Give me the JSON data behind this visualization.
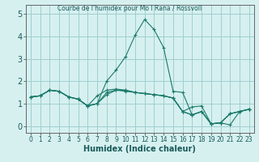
{
  "title": "",
  "xlabel": "Humidex (Indice chaleur)",
  "ylabel": "",
  "bg_color": "#d6f0f0",
  "grid_color": "#a0cece",
  "line_color": "#1a7a6a",
  "xlim": [
    -0.5,
    23.5
  ],
  "ylim": [
    -0.3,
    5.4
  ],
  "xticks": [
    0,
    1,
    2,
    3,
    4,
    5,
    6,
    7,
    8,
    9,
    10,
    11,
    12,
    13,
    14,
    15,
    16,
    17,
    18,
    19,
    20,
    21,
    22,
    23
  ],
  "yticks": [
    0,
    1,
    2,
    3,
    4,
    5
  ],
  "series": [
    [
      1.3,
      1.35,
      1.6,
      1.55,
      1.3,
      1.2,
      0.9,
      1.0,
      2.0,
      2.5,
      3.1,
      4.05,
      4.75,
      4.3,
      3.5,
      1.55,
      1.5,
      0.5,
      0.65,
      0.1,
      0.15,
      0.55,
      0.65,
      0.75
    ],
    [
      1.3,
      1.35,
      1.6,
      1.55,
      1.3,
      1.2,
      0.9,
      1.0,
      1.4,
      1.6,
      1.6,
      1.5,
      1.45,
      1.4,
      1.35,
      1.25,
      0.65,
      0.5,
      0.65,
      0.1,
      0.15,
      0.55,
      0.65,
      0.75
    ],
    [
      1.3,
      1.35,
      1.6,
      1.55,
      1.3,
      1.2,
      0.9,
      1.35,
      1.6,
      1.65,
      1.6,
      1.5,
      1.45,
      1.4,
      1.35,
      1.25,
      0.65,
      0.5,
      0.65,
      0.1,
      0.15,
      0.55,
      0.65,
      0.75
    ],
    [
      1.3,
      1.35,
      1.6,
      1.55,
      1.3,
      1.2,
      0.9,
      1.0,
      1.5,
      1.6,
      1.55,
      1.5,
      1.45,
      1.4,
      1.35,
      1.25,
      0.65,
      0.85,
      0.9,
      0.1,
      0.15,
      0.05,
      0.65,
      0.75
    ]
  ],
  "xlabel_fontsize": 7,
  "ytick_fontsize": 7,
  "xtick_fontsize": 5.5
}
